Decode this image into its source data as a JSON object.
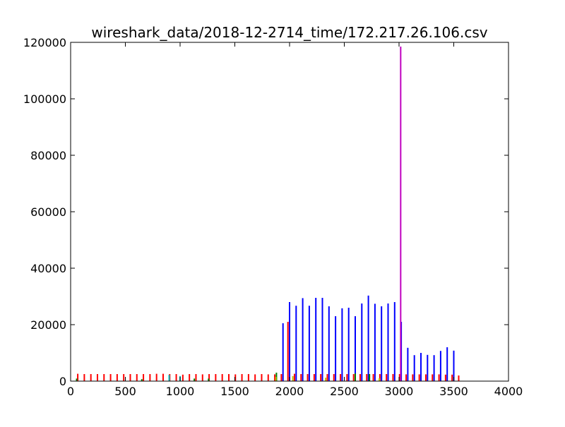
{
  "chart_data": {
    "type": "bar",
    "title": "wireshark_data/2018-12-2714_time/172.217.26.106.csv",
    "xlabel": "",
    "ylabel": "",
    "xlim": [
      0,
      4000
    ],
    "ylim": [
      0,
      120000
    ],
    "x_ticks": [
      0,
      500,
      1000,
      1500,
      2000,
      2500,
      3000,
      3500,
      4000
    ],
    "y_ticks": [
      0,
      20000,
      40000,
      60000,
      80000,
      100000,
      120000
    ],
    "grid": false,
    "series": [
      {
        "color": "#ff0000",
        "x": [
          65,
          125,
          185,
          245,
          305,
          365,
          425,
          485,
          545,
          605,
          665,
          725,
          785,
          845,
          905,
          965,
          1025,
          1085,
          1145,
          1205,
          1265,
          1325,
          1385,
          1445,
          1505,
          1565,
          1625,
          1685,
          1745,
          1805,
          1865,
          1925,
          1985,
          2045,
          2105,
          2165,
          2225,
          2285,
          2345,
          2405,
          2465,
          2525,
          2585,
          2645,
          2705,
          2765,
          2825,
          2885,
          2945,
          3005,
          3065,
          3125,
          3185,
          3245,
          3305,
          3365,
          3425,
          3485,
          3545
        ],
        "values": [
          2600,
          2500,
          2500,
          2500,
          2500,
          2500,
          2500,
          2500,
          2500,
          2500,
          2500,
          2500,
          2600,
          2600,
          2500,
          2500,
          2300,
          2500,
          2500,
          2400,
          2500,
          2500,
          2500,
          2500,
          2400,
          2500,
          2500,
          2400,
          2500,
          2400,
          2400,
          2500,
          21000,
          2600,
          2500,
          2500,
          2500,
          2500,
          2500,
          2500,
          2500,
          2500,
          2500,
          2500,
          2500,
          2500,
          2500,
          2500,
          2500,
          2500,
          2400,
          2400,
          2400,
          2400,
          2400,
          2400,
          2300,
          2300,
          2000
        ]
      },
      {
        "color": "#0000ff",
        "x": [
          1940,
          2000,
          2060,
          2120,
          2180,
          2240,
          2300,
          2360,
          2420,
          2480,
          2540,
          2600,
          2660,
          2720,
          2780,
          2840,
          2900,
          2960,
          3020,
          3080,
          3140,
          3200,
          3260,
          3320,
          3380,
          3440,
          3500
        ],
        "values": [
          20500,
          28000,
          26700,
          29400,
          26700,
          29500,
          29500,
          26500,
          23000,
          25800,
          26000,
          23000,
          27500,
          30300,
          27400,
          26500,
          27500,
          28000,
          21000,
          11800,
          9200,
          10000,
          9300,
          9200,
          10700,
          12000,
          10800
        ]
      },
      {
        "color": "#bf00bf",
        "x": [
          3015
        ],
        "values": [
          118500
        ]
      },
      {
        "color": "#00bfbf",
        "x": [
          900,
          1000
        ],
        "values": [
          2200,
          1800
        ]
      },
      {
        "color": "#008000",
        "x": [
          55,
          650,
          1130,
          1260,
          1880,
          2600,
          2730
        ],
        "values": [
          900,
          700,
          900,
          900,
          3000,
          2700,
          2500
        ]
      },
      {
        "color": "#bfbf00",
        "x": [
          1875,
          2030,
          2330,
          2820
        ],
        "values": [
          1500,
          1800,
          1200,
          1000
        ]
      }
    ]
  }
}
